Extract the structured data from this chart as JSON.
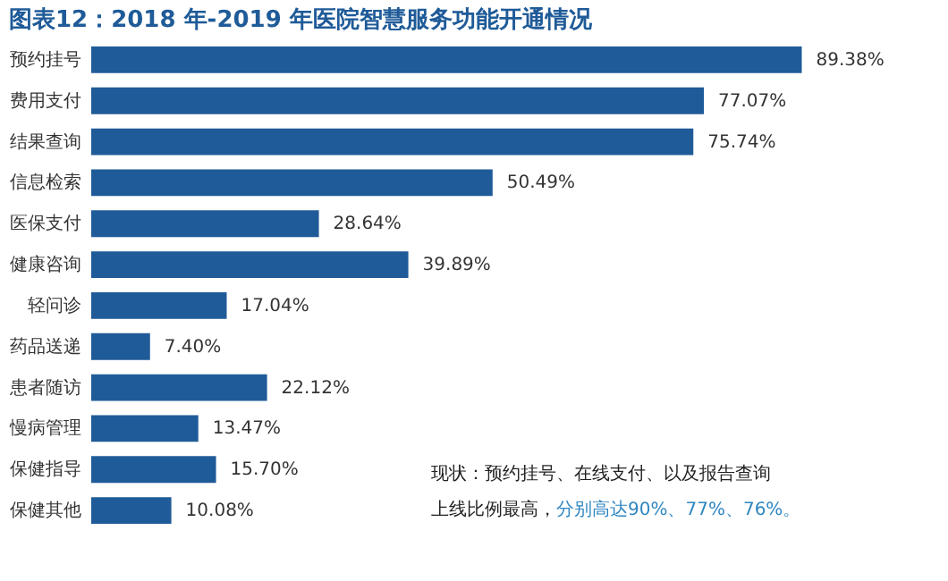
{
  "chart_data": {
    "type": "bar",
    "orientation": "horizontal",
    "title": "图表12：2018 年-2019 年医院智慧服务功能开通情况",
    "categories": [
      "预约挂号",
      "费用支付",
      "结果查询",
      "信息检索",
      "医保支付",
      "健康咨询",
      "轻问诊",
      "药品送递",
      "患者随访",
      "慢病管理",
      "保健指导",
      "保健其他"
    ],
    "values": [
      89.38,
      77.07,
      75.74,
      50.49,
      28.64,
      39.89,
      17.04,
      7.4,
      22.12,
      13.47,
      15.7,
      10.08
    ],
    "value_labels": [
      "89.38%",
      "77.07%",
      "75.74%",
      "50.49%",
      "28.64%",
      "39.89%",
      "17.04%",
      "7.40%",
      "22.12%",
      "13.47%",
      "15.70%",
      "10.08%"
    ],
    "color": "#1f5b98",
    "tick_labels": "y",
    "annotations": [
      "现状：预约挂号、在线支付、以及报告查询",
      "上线比例最高，",
      "分别高达90%、77%、76%。"
    ]
  }
}
